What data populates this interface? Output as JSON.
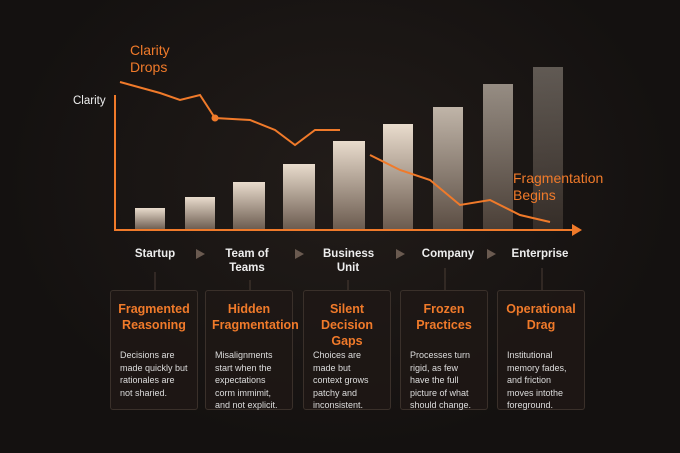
{
  "axis_label": "Clarity",
  "annotations": {
    "clarity_drops": "Clarity Drops",
    "fragmentation_begins": "Fragmentation Begins"
  },
  "stages": [
    "Startup",
    "Team of Teams",
    "Business Unit",
    "Company",
    "Enterprise"
  ],
  "cards": [
    {
      "title": "Fragmented Reasoning",
      "body": "Decisions are made quickly but rationales are not sharied."
    },
    {
      "title": "Hidden Fragmentation",
      "body": "Misalignments start when the expectations corm immimit, and not explicit."
    },
    {
      "title": "Silent Decision Gaps",
      "body": "Choices are made but context grows patchy and inconsistent."
    },
    {
      "title": "Frozen Practices",
      "body": "Processes turn rigid, as few have the full picture of what should change."
    },
    {
      "title": "Operational Drag",
      "body": "Institutional memory fades, and friction moves intothe foreground."
    }
  ]
}
